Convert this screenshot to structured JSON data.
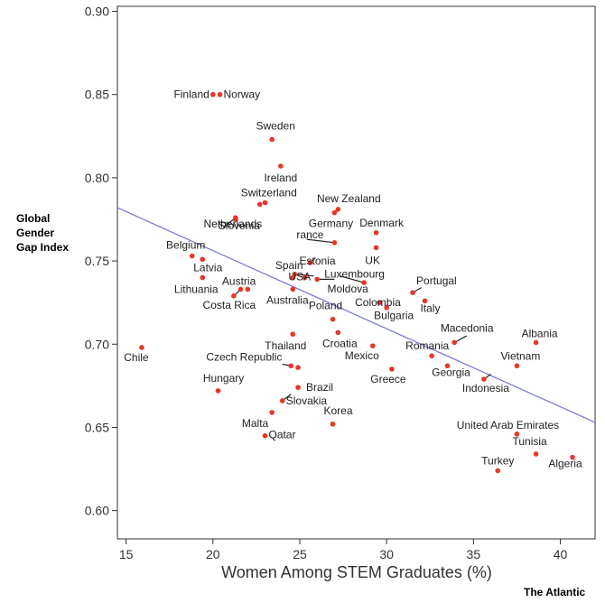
{
  "chart_data": {
    "type": "scatter",
    "title": "",
    "xlabel": "Women Among STEM Graduates (%)",
    "ylabel_lines": [
      "Global",
      "Gender",
      "Gap Index"
    ],
    "xlim": [
      14.5,
      42
    ],
    "ylim": [
      0.583,
      0.903
    ],
    "xticks": [
      15,
      20,
      25,
      30,
      35,
      40
    ],
    "yticks": [
      "0.60",
      "0.65",
      "0.70",
      "0.75",
      "0.80",
      "0.85",
      "0.90"
    ],
    "grid": false,
    "point_color": "#e8352b",
    "trend_color": "#7b7bd0",
    "trendline": {
      "x": [
        14.5,
        42
      ],
      "y": [
        0.782,
        0.653
      ]
    },
    "points": [
      {
        "label": "Finland",
        "x": 20.0,
        "y": 0.85
      },
      {
        "label": "Norway",
        "x": 20.4,
        "y": 0.85
      },
      {
        "label": "Sweden",
        "x": 23.4,
        "y": 0.823
      },
      {
        "label": "Ireland",
        "x": 23.9,
        "y": 0.807
      },
      {
        "label": "Switzerland",
        "x": 22.7,
        "y": 0.784
      },
      {
        "label": "",
        "x": 23.0,
        "y": 0.785
      },
      {
        "label": "Slovenia",
        "x": 21.3,
        "y": 0.775
      },
      {
        "label": "New Zealand",
        "x": 27.2,
        "y": 0.781
      },
      {
        "label": "Germany",
        "x": 27.0,
        "y": 0.779
      },
      {
        "label": "Denmark",
        "x": 29.4,
        "y": 0.767
      },
      {
        "label": "UK",
        "x": 29.4,
        "y": 0.758
      },
      {
        "label": "Netherlands",
        "x": 21.3,
        "y": 0.776
      },
      {
        "label": "rance",
        "x": 27.0,
        "y": 0.761
      },
      {
        "label": "Estonia",
        "x": 25.6,
        "y": 0.749
      },
      {
        "label": "Belgium",
        "x": 18.8,
        "y": 0.753
      },
      {
        "label": "Latvia",
        "x": 19.4,
        "y": 0.751
      },
      {
        "label": "Lithuania",
        "x": 19.4,
        "y": 0.74
      },
      {
        "label": "Austria",
        "x": 21.6,
        "y": 0.733
      },
      {
        "label": "",
        "x": 22.0,
        "y": 0.733
      },
      {
        "label": "Costa Rica",
        "x": 21.2,
        "y": 0.729
      },
      {
        "label": "Spain",
        "x": 24.7,
        "y": 0.742
      },
      {
        "label": "USA",
        "x": 25.3,
        "y": 0.74
      },
      {
        "label": "",
        "x": 24.6,
        "y": 0.74
      },
      {
        "label": "Luxembourg",
        "x": 26.0,
        "y": 0.739
      },
      {
        "label": "Moldova",
        "x": 28.7,
        "y": 0.737
      },
      {
        "label": "Australia",
        "x": 24.6,
        "y": 0.733
      },
      {
        "label": "Portugal",
        "x": 31.5,
        "y": 0.731
      },
      {
        "label": "Colombia",
        "x": 29.6,
        "y": 0.725
      },
      {
        "label": "Italy",
        "x": 32.2,
        "y": 0.726
      },
      {
        "label": "Poland",
        "x": 26.9,
        "y": 0.715
      },
      {
        "label": "Bulgaria",
        "x": 30.0,
        "y": 0.722
      },
      {
        "label": "Croatia",
        "x": 27.2,
        "y": 0.707
      },
      {
        "label": "Macedonia",
        "x": 33.9,
        "y": 0.701
      },
      {
        "label": "Albania",
        "x": 38.6,
        "y": 0.701
      },
      {
        "label": "Thailand",
        "x": 24.6,
        "y": 0.706
      },
      {
        "label": "Romania",
        "x": 32.6,
        "y": 0.693
      },
      {
        "label": "Mexico",
        "x": 29.2,
        "y": 0.699
      },
      {
        "label": "Vietnam",
        "x": 37.5,
        "y": 0.687
      },
      {
        "label": "Chile",
        "x": 15.9,
        "y": 0.698
      },
      {
        "label": "Czech Republic",
        "x": 24.5,
        "y": 0.687
      },
      {
        "label": "",
        "x": 24.9,
        "y": 0.686
      },
      {
        "label": "Georgia",
        "x": 33.5,
        "y": 0.687
      },
      {
        "label": "Greece",
        "x": 30.3,
        "y": 0.685
      },
      {
        "label": "Brazil",
        "x": 24.9,
        "y": 0.674
      },
      {
        "label": "Indonesia",
        "x": 35.6,
        "y": 0.679
      },
      {
        "label": "Hungary",
        "x": 20.3,
        "y": 0.672
      },
      {
        "label": "Slovakia",
        "x": 24.0,
        "y": 0.666
      },
      {
        "label": "Malta",
        "x": 23.4,
        "y": 0.659
      },
      {
        "label": "Korea",
        "x": 26.9,
        "y": 0.652
      },
      {
        "label": "United Arab Emirates",
        "x": 37.5,
        "y": 0.646
      },
      {
        "label": "Qatar",
        "x": 23.0,
        "y": 0.645
      },
      {
        "label": "Tunisia",
        "x": 38.6,
        "y": 0.634
      },
      {
        "label": "Algeria",
        "x": 40.7,
        "y": 0.632
      },
      {
        "label": "Turkey",
        "x": 36.4,
        "y": 0.624
      }
    ]
  },
  "source": "The Atlantic"
}
